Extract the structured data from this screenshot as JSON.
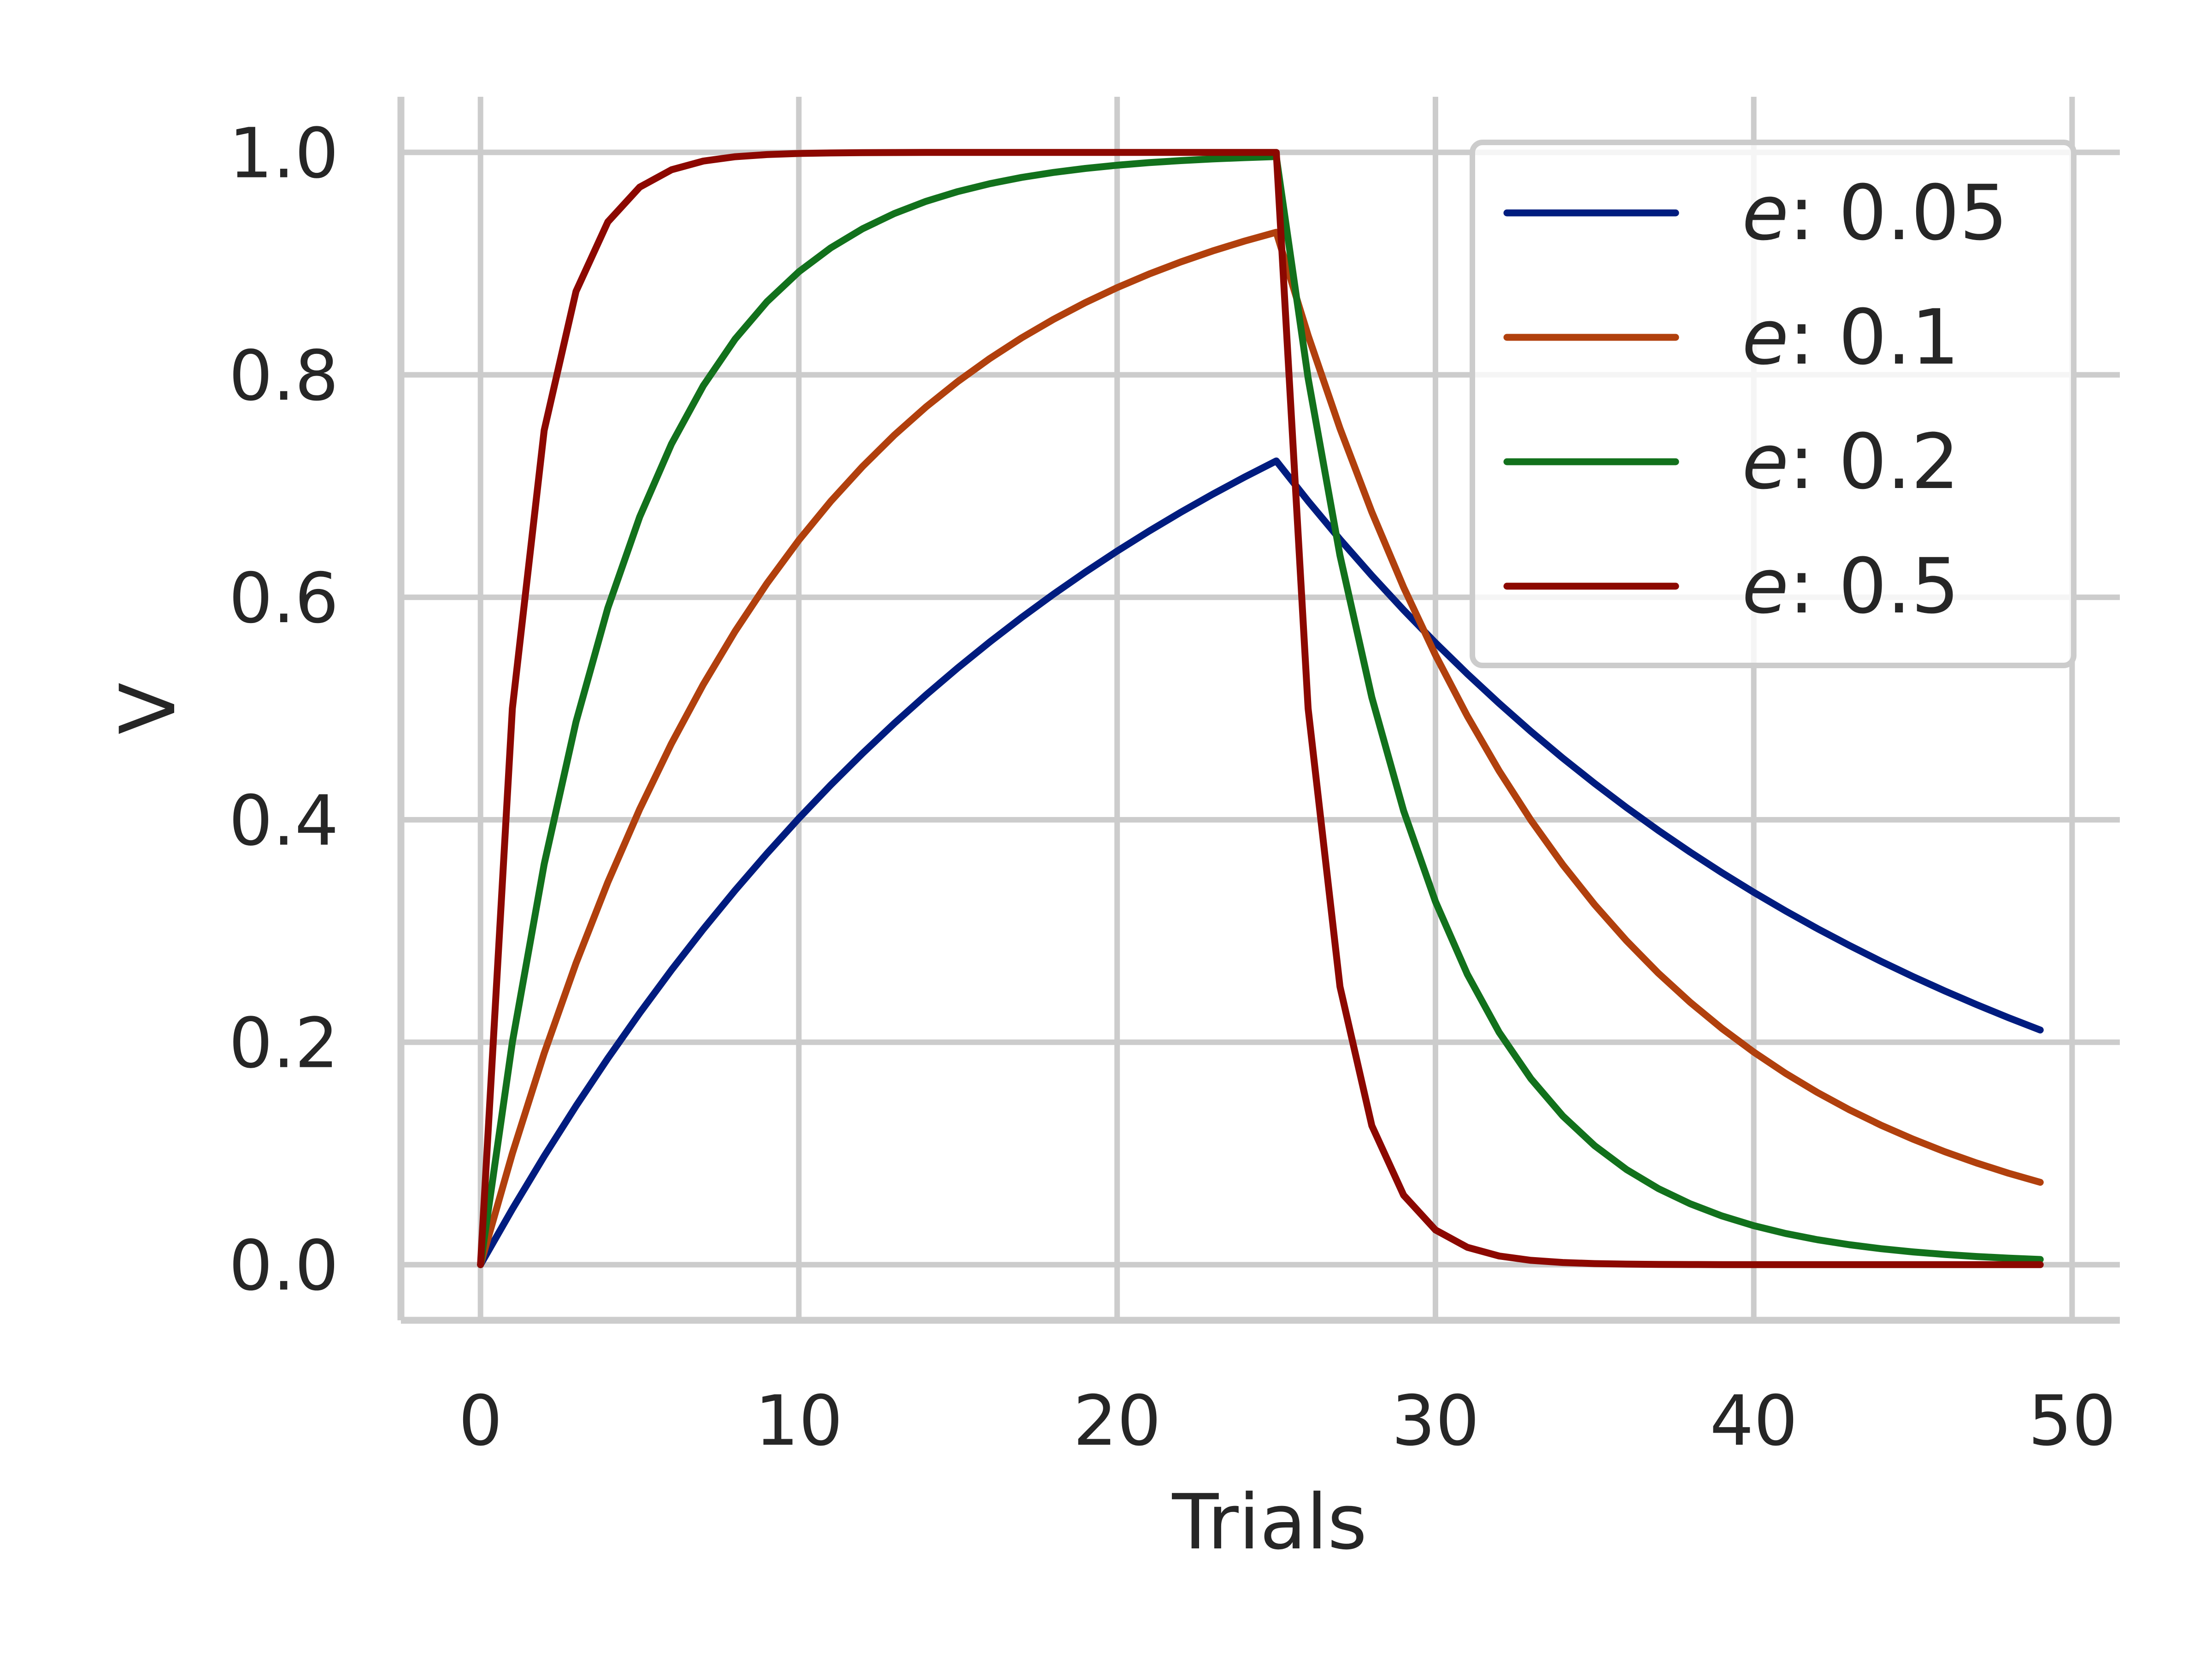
{
  "chart_data": {
    "type": "line",
    "title": "",
    "xlabel": "Trials",
    "ylabel": "V",
    "xlim": [
      -2.5,
      51.5
    ],
    "ylim": [
      -0.05,
      1.05
    ],
    "xticks": [
      0,
      10,
      20,
      30,
      40,
      50
    ],
    "yticks": [
      0.0,
      0.2,
      0.4,
      0.6,
      0.8,
      1.0
    ],
    "xtick_labels": [
      "0",
      "10",
      "20",
      "30",
      "40",
      "50"
    ],
    "ytick_labels": [
      "0.0",
      "0.2",
      "0.4",
      "0.6",
      "0.8",
      "1.0"
    ],
    "grid": true,
    "legend_position": "top-right",
    "acquisition_trials": 25,
    "total_trials": 50,
    "series": [
      {
        "name": "e : 0.05",
        "label_symbol": "e",
        "label_value": ": 0.05",
        "e": 0.05,
        "color": "#001c7f"
      },
      {
        "name": "e : 0.1",
        "label_symbol": "e",
        "label_value": ": 0.1",
        "e": 0.1,
        "color": "#b1400d"
      },
      {
        "name": "e : 0.2",
        "label_symbol": "e",
        "label_value": ": 0.2",
        "e": 0.2,
        "color": "#12711c"
      },
      {
        "name": "e : 0.5",
        "label_symbol": "e",
        "label_value": ": 0.5",
        "e": 0.5,
        "color": "#8c0800"
      }
    ]
  }
}
